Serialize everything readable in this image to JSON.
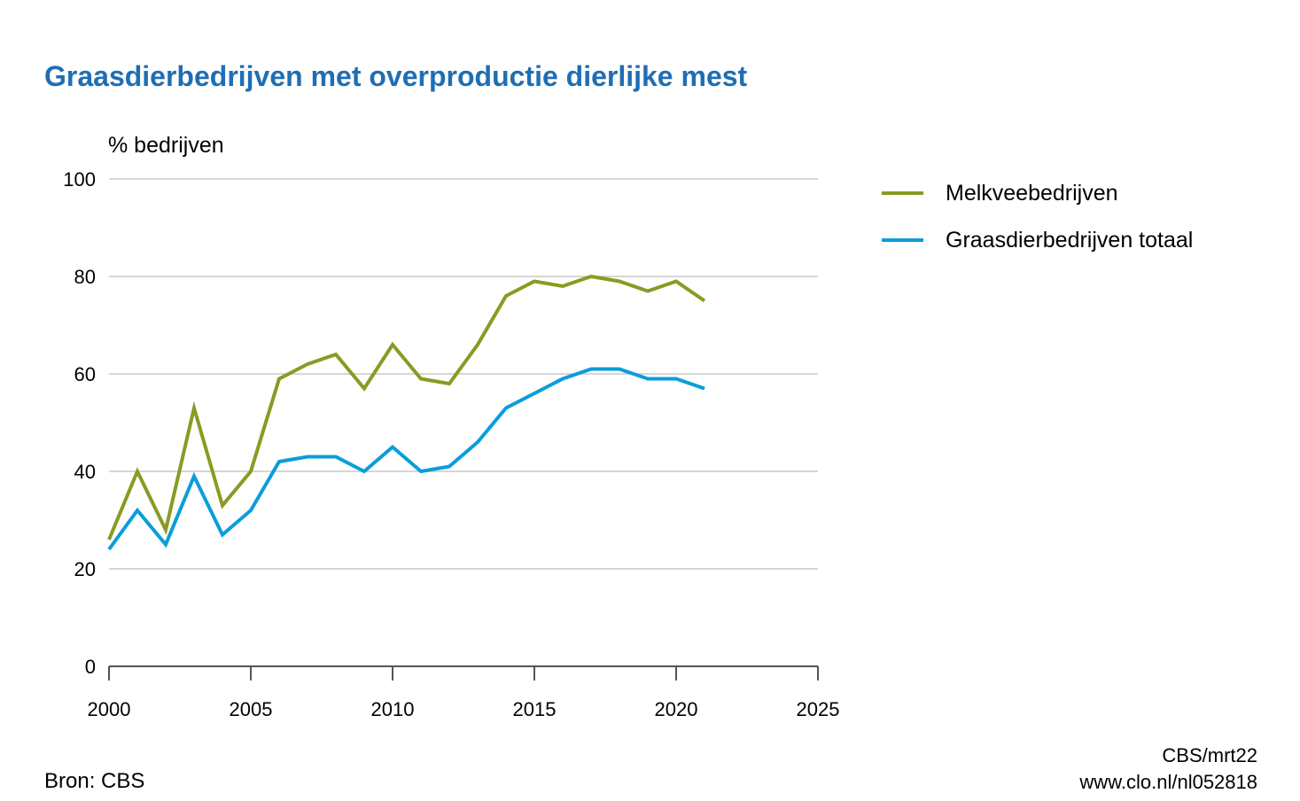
{
  "chart_data": {
    "type": "line",
    "title": "Graasdierbedrijven met overproductie dierlijke mest",
    "ylabel": "% bedrijven",
    "xlabel": "",
    "xlim": [
      2000,
      2025
    ],
    "ylim": [
      0,
      100
    ],
    "xticks": [
      2000,
      2005,
      2010,
      2015,
      2020,
      2025
    ],
    "yticks": [
      0,
      20,
      40,
      60,
      80,
      100
    ],
    "grid": true,
    "legend_position": "right",
    "x": [
      2000,
      2001,
      2002,
      2003,
      2004,
      2005,
      2006,
      2007,
      2008,
      2009,
      2010,
      2011,
      2012,
      2013,
      2014,
      2015,
      2016,
      2017,
      2018,
      2019,
      2020,
      2021
    ],
    "series": [
      {
        "name": "Melkveebedrijven",
        "color": "#8a9a23",
        "values": [
          26,
          40,
          28,
          53,
          33,
          40,
          59,
          62,
          64,
          57,
          66,
          59,
          58,
          66,
          76,
          79,
          78,
          80,
          79,
          77,
          79,
          75
        ]
      },
      {
        "name": "Graasdierbedrijven totaal",
        "color": "#0b9ddb",
        "values": [
          24,
          32,
          25,
          39,
          27,
          32,
          42,
          43,
          43,
          40,
          45,
          40,
          41,
          46,
          53,
          56,
          59,
          61,
          61,
          59,
          59,
          57
        ]
      }
    ]
  },
  "footer": {
    "source": "Bron: CBS",
    "credit": "CBS/mrt22",
    "link": "www.clo.nl/nl052818"
  }
}
